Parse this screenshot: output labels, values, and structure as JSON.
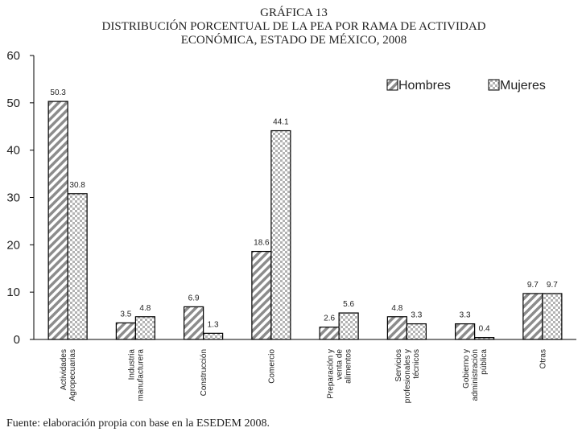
{
  "chart_data": {
    "type": "bar",
    "title_lines": [
      "GRÁFICA 13",
      "DISTRIBUCIÓN PORCENTUAL DE LA PEA POR RAMA DE ACTIVIDAD",
      "ECONÓMICA, ESTADO DE MÉXICO, 2008"
    ],
    "categories": [
      [
        "Actividades",
        "Agropecuarias"
      ],
      [
        "Industria",
        "manufacturera"
      ],
      [
        "Construcción"
      ],
      [
        "Comercio"
      ],
      [
        "Preparación y",
        "venta de",
        "alimentos"
      ],
      [
        "Servicios",
        "profesionales y",
        "técnicos"
      ],
      [
        "Gobierno y",
        "administración",
        "pública"
      ],
      [
        "Otras"
      ]
    ],
    "series": [
      {
        "name": "Hombres",
        "values": [
          50.3,
          3.5,
          6.9,
          18.6,
          2.6,
          4.8,
          3.3,
          9.7
        ],
        "pattern": "diagonal-stripes"
      },
      {
        "name": "Mujeres",
        "values": [
          30.8,
          4.8,
          1.3,
          44.1,
          5.6,
          3.3,
          0.4,
          9.7
        ],
        "pattern": "checkerboard"
      }
    ],
    "ylim": [
      0,
      60
    ],
    "yticks": [
      0,
      10,
      20,
      30,
      40,
      50,
      60
    ],
    "xlabel": "",
    "ylabel": "",
    "legend_position": "top-right",
    "grid": false
  },
  "source": "Fuente: elaboración propia con base en la ESEDEM 2008."
}
